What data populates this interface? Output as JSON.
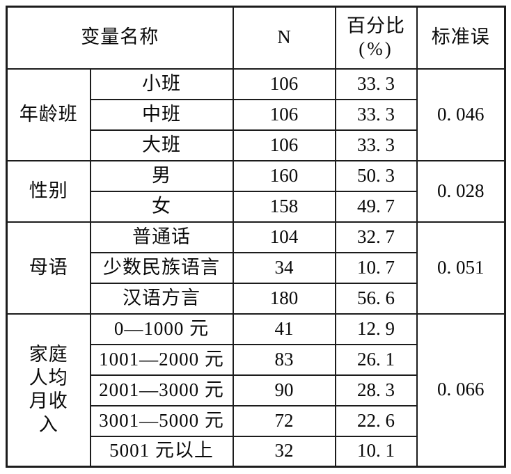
{
  "table": {
    "header": {
      "variable": "变量名称",
      "n": "N",
      "percent_line1": "百分比",
      "percent_line2": "(%)",
      "standard_error": "标准误"
    },
    "groups": [
      {
        "name": "age-class",
        "label": "年龄班",
        "standard_error": "0. 046",
        "rows": [
          {
            "category": "小班",
            "n": "106",
            "percent": "33. 3"
          },
          {
            "category": "中班",
            "n": "106",
            "percent": "33. 3"
          },
          {
            "category": "大班",
            "n": "106",
            "percent": "33. 3"
          }
        ]
      },
      {
        "name": "gender",
        "label": "性别",
        "standard_error": "0. 028",
        "rows": [
          {
            "category": "男",
            "n": "160",
            "percent": "50. 3"
          },
          {
            "category": "女",
            "n": "158",
            "percent": "49. 7"
          }
        ]
      },
      {
        "name": "mother-tongue",
        "label": "母语",
        "standard_error": "0. 051",
        "rows": [
          {
            "category": "普通话",
            "n": "104",
            "percent": "32. 7"
          },
          {
            "category": "少数民族语言",
            "n": "34",
            "percent": "10. 7"
          },
          {
            "category": "汉语方言",
            "n": "180",
            "percent": "56. 6"
          }
        ]
      },
      {
        "name": "family-monthly-income-per-capita",
        "label": "家庭\n人均\n月收\n入",
        "standard_error": "0. 066",
        "rows": [
          {
            "category": "0—1000 元",
            "n": "41",
            "percent": "12. 9"
          },
          {
            "category": "1001—2000 元",
            "n": "83",
            "percent": "26. 1"
          },
          {
            "category": "2001—3000 元",
            "n": "90",
            "percent": "28. 3"
          },
          {
            "category": "3001—5000 元",
            "n": "72",
            "percent": "22. 6"
          },
          {
            "category": "5001 元以上",
            "n": "32",
            "percent": "10. 1"
          }
        ]
      }
    ],
    "colors": {
      "border": "#1c1c1c",
      "background": "#ffffff",
      "text": "#0a0a0a"
    }
  }
}
